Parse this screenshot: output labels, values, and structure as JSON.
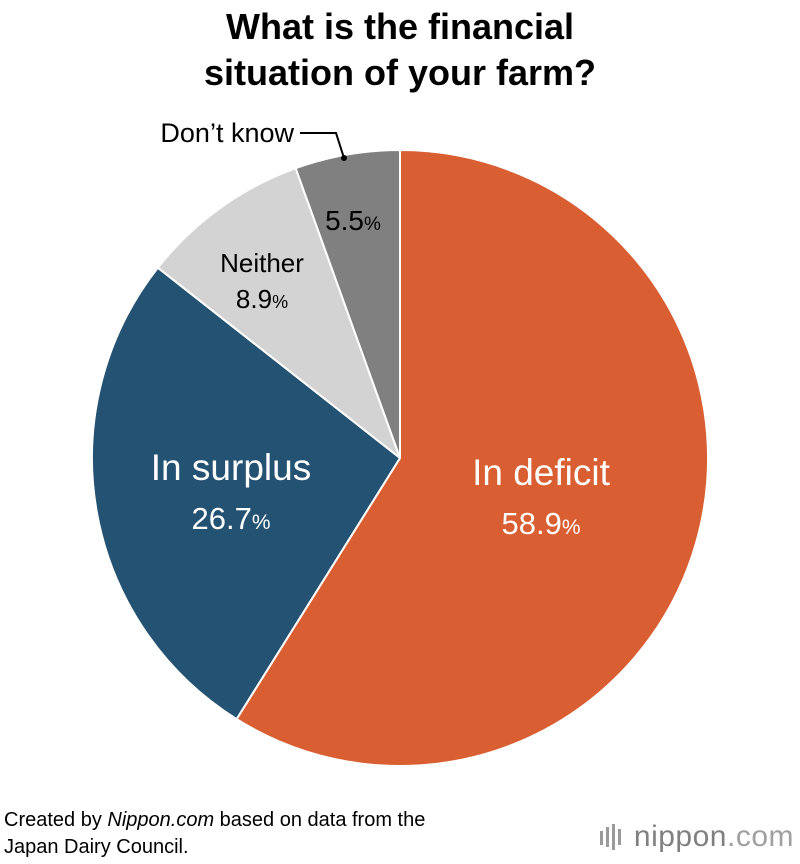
{
  "title": {
    "line1": "What is the financial",
    "line2": "situation of your farm?"
  },
  "chart_data": {
    "type": "pie",
    "title": "What is the financial situation of your farm?",
    "unit": "%",
    "start_angle_deg": 0,
    "direction": "clockwise",
    "slices": [
      {
        "label": "In deficit",
        "value": 58.9,
        "value_text": "58.9",
        "color": "#d95f33",
        "text_color": "#ffffff"
      },
      {
        "label": "In surplus",
        "value": 26.7,
        "value_text": "26.7",
        "color": "#245273",
        "text_color": "#ffffff"
      },
      {
        "label": "Neither",
        "value": 8.9,
        "value_text": "8.9",
        "color": "#d3d3d3",
        "text_color": "#000000"
      },
      {
        "label": "Don’t know",
        "value": 5.5,
        "value_text": "5.5",
        "color": "#808080",
        "text_color": "#000000"
      }
    ]
  },
  "footer": {
    "source_line1": "Created by Nippon.com based on data from the",
    "source_line2": "Japan Dairy Council."
  },
  "brand": {
    "name": "nippon",
    "suffix": ".com"
  }
}
